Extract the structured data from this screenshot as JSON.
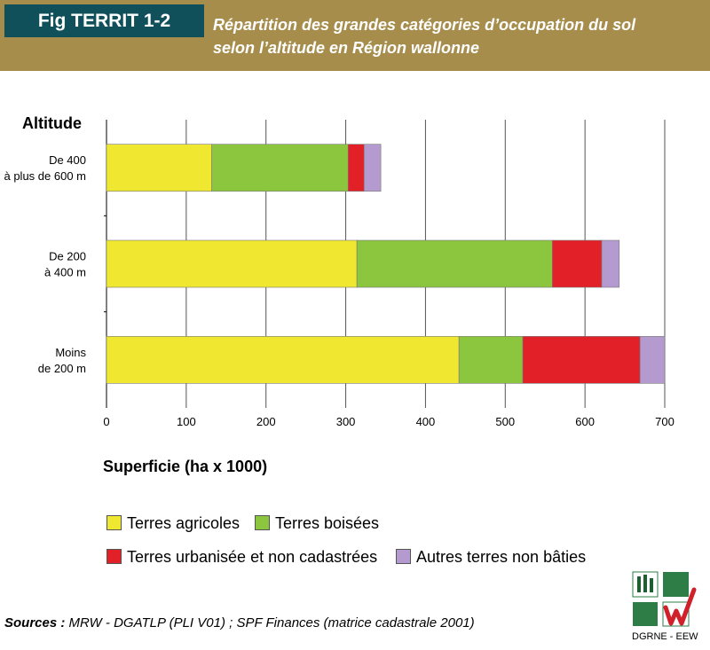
{
  "header": {
    "fig_tag": "Fig TERRIT 1-2",
    "title_line1": "Répartition des grandes catégories d’occupation du sol",
    "title_line2": "selon l’altitude en Région wallonne"
  },
  "colors": {
    "header_band": "#a68d4c",
    "fig_tag_bg": "#10505a",
    "agricoles": "#f0e830",
    "boisees": "#8cc63f",
    "urbanisee": "#e22028",
    "autres": "#b59ad0"
  },
  "chart_data": {
    "type": "bar",
    "orientation": "horizontal",
    "stacked": true,
    "ylabel": "Altitude",
    "xlabel": "Superficie (ha x 1000)",
    "xlim": [
      0,
      700
    ],
    "xticks": [
      0,
      100,
      200,
      300,
      400,
      500,
      600,
      700
    ],
    "grid": "vertical",
    "legend_position": "bottom",
    "categories": [
      [
        "De 400",
        "à plus de 600 m"
      ],
      [
        "De 200",
        "à 400 m"
      ],
      [
        "Moins",
        "de 200 m"
      ]
    ],
    "series": [
      {
        "name": "Terres agricoles",
        "color": "#f0e830",
        "values": [
          132,
          314,
          442
        ]
      },
      {
        "name": "Terres boisées",
        "color": "#8cc63f",
        "values": [
          171,
          245,
          80
        ]
      },
      {
        "name": "Terres urbanisée et non cadastrées",
        "color": "#e22028",
        "values": [
          20,
          62,
          147
        ]
      },
      {
        "name": "Autres terres non bâties",
        "color": "#b59ad0",
        "values": [
          21,
          22,
          31
        ]
      }
    ]
  },
  "sources": {
    "label": "Sources :",
    "text": " MRW - DGATLP (PLI V01) ; SPF Finances (matrice cadastrale 2001)"
  },
  "logo": {
    "label": "DGRNE - EEW"
  }
}
